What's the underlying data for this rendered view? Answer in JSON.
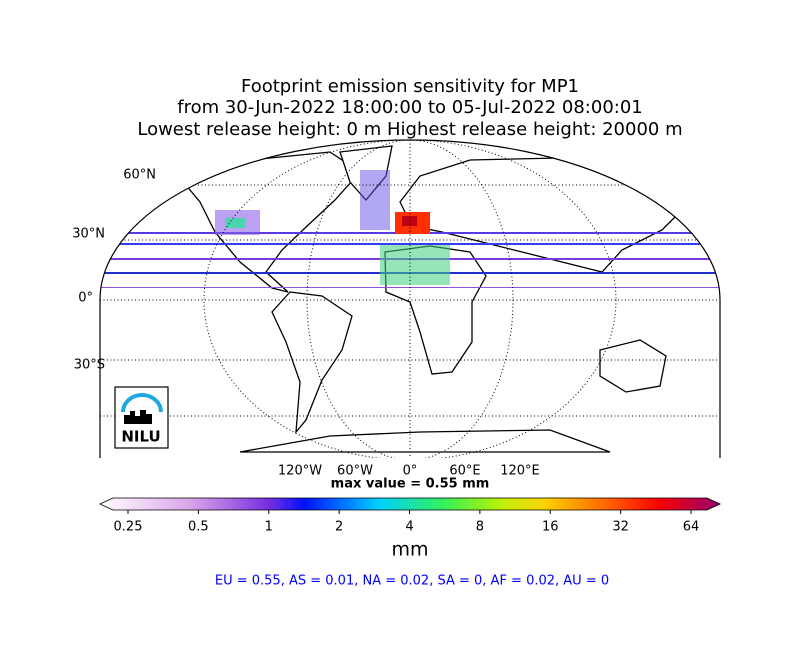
{
  "title": [
    "Footprint emission sensitivity for MP1",
    "from 30-Jun-2022 18:00:00 to 05-Jul-2022 08:00:01",
    "Lowest release height: 0 m       Highest release height: 20000 m"
  ],
  "lat_labels": [
    "60°N",
    "30°N",
    "0°",
    "30°S"
  ],
  "lon_labels": [
    "120°W",
    "60°W",
    "0°",
    "60°E",
    "120°E"
  ],
  "max_value": "max value = 0.55 mm",
  "colorbar": {
    "ticks": [
      0.25,
      0.5,
      1,
      2,
      4,
      8,
      16,
      32,
      64
    ],
    "label": "mm"
  },
  "regions": "EU = 0.55,  AS = 0.01,  NA = 0.02,  SA = 0,  AF = 0.02,  AU = 0",
  "logo": {
    "text": "NILU"
  }
}
